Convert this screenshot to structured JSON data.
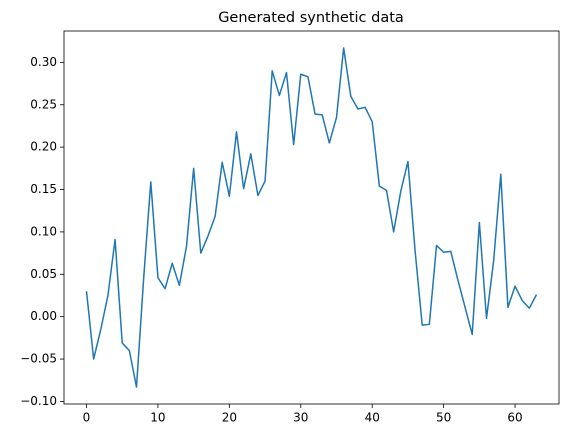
{
  "chart_data": {
    "type": "line",
    "title": "Generated synthetic data",
    "x": [
      0,
      1,
      2,
      3,
      4,
      5,
      6,
      7,
      8,
      9,
      10,
      11,
      12,
      13,
      14,
      15,
      16,
      17,
      18,
      19,
      20,
      21,
      22,
      23,
      24,
      25,
      26,
      27,
      28,
      29,
      30,
      31,
      32,
      33,
      34,
      35,
      36,
      37,
      38,
      39,
      40,
      41,
      42,
      43,
      44,
      45,
      46,
      47,
      48,
      49,
      50,
      51,
      52,
      53,
      54,
      55,
      56,
      57,
      58,
      59,
      60,
      61,
      62,
      63
    ],
    "series": [
      {
        "color": "#1f77b4",
        "values": [
          0.03,
          -0.05,
          -0.015,
          0.025,
          0.091,
          -0.031,
          -0.04,
          -0.083,
          0.045,
          0.159,
          0.046,
          0.033,
          0.063,
          0.037,
          0.083,
          0.175,
          0.075,
          0.095,
          0.118,
          0.182,
          0.142,
          0.218,
          0.151,
          0.192,
          0.143,
          0.16,
          0.29,
          0.261,
          0.288,
          0.203,
          0.286,
          0.283,
          0.239,
          0.238,
          0.205,
          0.235,
          0.317,
          0.26,
          0.245,
          0.247,
          0.23,
          0.154,
          0.149,
          0.1,
          0.148,
          0.183,
          0.078,
          -0.01,
          -0.009,
          0.084,
          0.076,
          0.077,
          0.043,
          0.011,
          -0.021,
          0.111,
          -0.002,
          0.066,
          0.168,
          0.011,
          0.036,
          0.019,
          0.01,
          0.026
        ]
      }
    ],
    "xlim": [
      -3.15,
      66.15
    ],
    "xticks": [
      0,
      10,
      20,
      30,
      40,
      50,
      60
    ],
    "ylim": [
      -0.103,
      0.337
    ],
    "yticks": [
      {
        "value": -0.1,
        "label": "−0.10"
      },
      {
        "value": -0.05,
        "label": "−0.05"
      },
      {
        "value": 0,
        "label": "0.00"
      },
      {
        "value": 0.05,
        "label": "0.05"
      },
      {
        "value": 0.1,
        "label": "0.10"
      },
      {
        "value": 0.15,
        "label": "0.15"
      },
      {
        "value": 0.2,
        "label": "0.20"
      },
      {
        "value": 0.25,
        "label": "0.25"
      },
      {
        "value": 0.3,
        "label": "0.30"
      }
    ]
  }
}
